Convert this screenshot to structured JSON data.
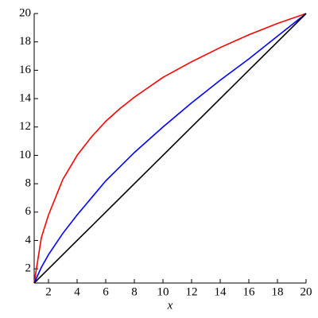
{
  "chart_data": {
    "type": "line",
    "x_label": "x",
    "x": [
      1,
      1.5,
      2,
      3,
      4,
      5,
      6,
      7,
      8,
      10,
      12,
      14,
      16,
      18,
      20
    ],
    "series": [
      {
        "color": "#ff0000",
        "values": [
          1,
          4.2,
          5.8,
          8.3,
          10.0,
          11.3,
          12.4,
          13.3,
          14.1,
          15.5,
          16.6,
          17.6,
          18.5,
          19.3,
          20
        ]
      },
      {
        "color": "#0000ff",
        "values": [
          1,
          2.1,
          3.0,
          4.5,
          5.8,
          7.0,
          8.2,
          9.2,
          10.2,
          12.0,
          13.7,
          15.3,
          16.8,
          18.4,
          20
        ]
      },
      {
        "color": "#000000",
        "values": [
          1,
          1.5,
          2,
          3,
          4,
          5,
          6,
          7,
          8,
          10,
          12,
          14,
          16,
          18,
          20
        ]
      }
    ],
    "xlim": [
      1,
      20
    ],
    "ylim": [
      1,
      20
    ],
    "xticks": [
      2,
      4,
      6,
      8,
      10,
      12,
      14,
      16,
      18,
      20
    ],
    "yticks": [
      2,
      4,
      6,
      8,
      10,
      12,
      14,
      16,
      18,
      20
    ]
  }
}
